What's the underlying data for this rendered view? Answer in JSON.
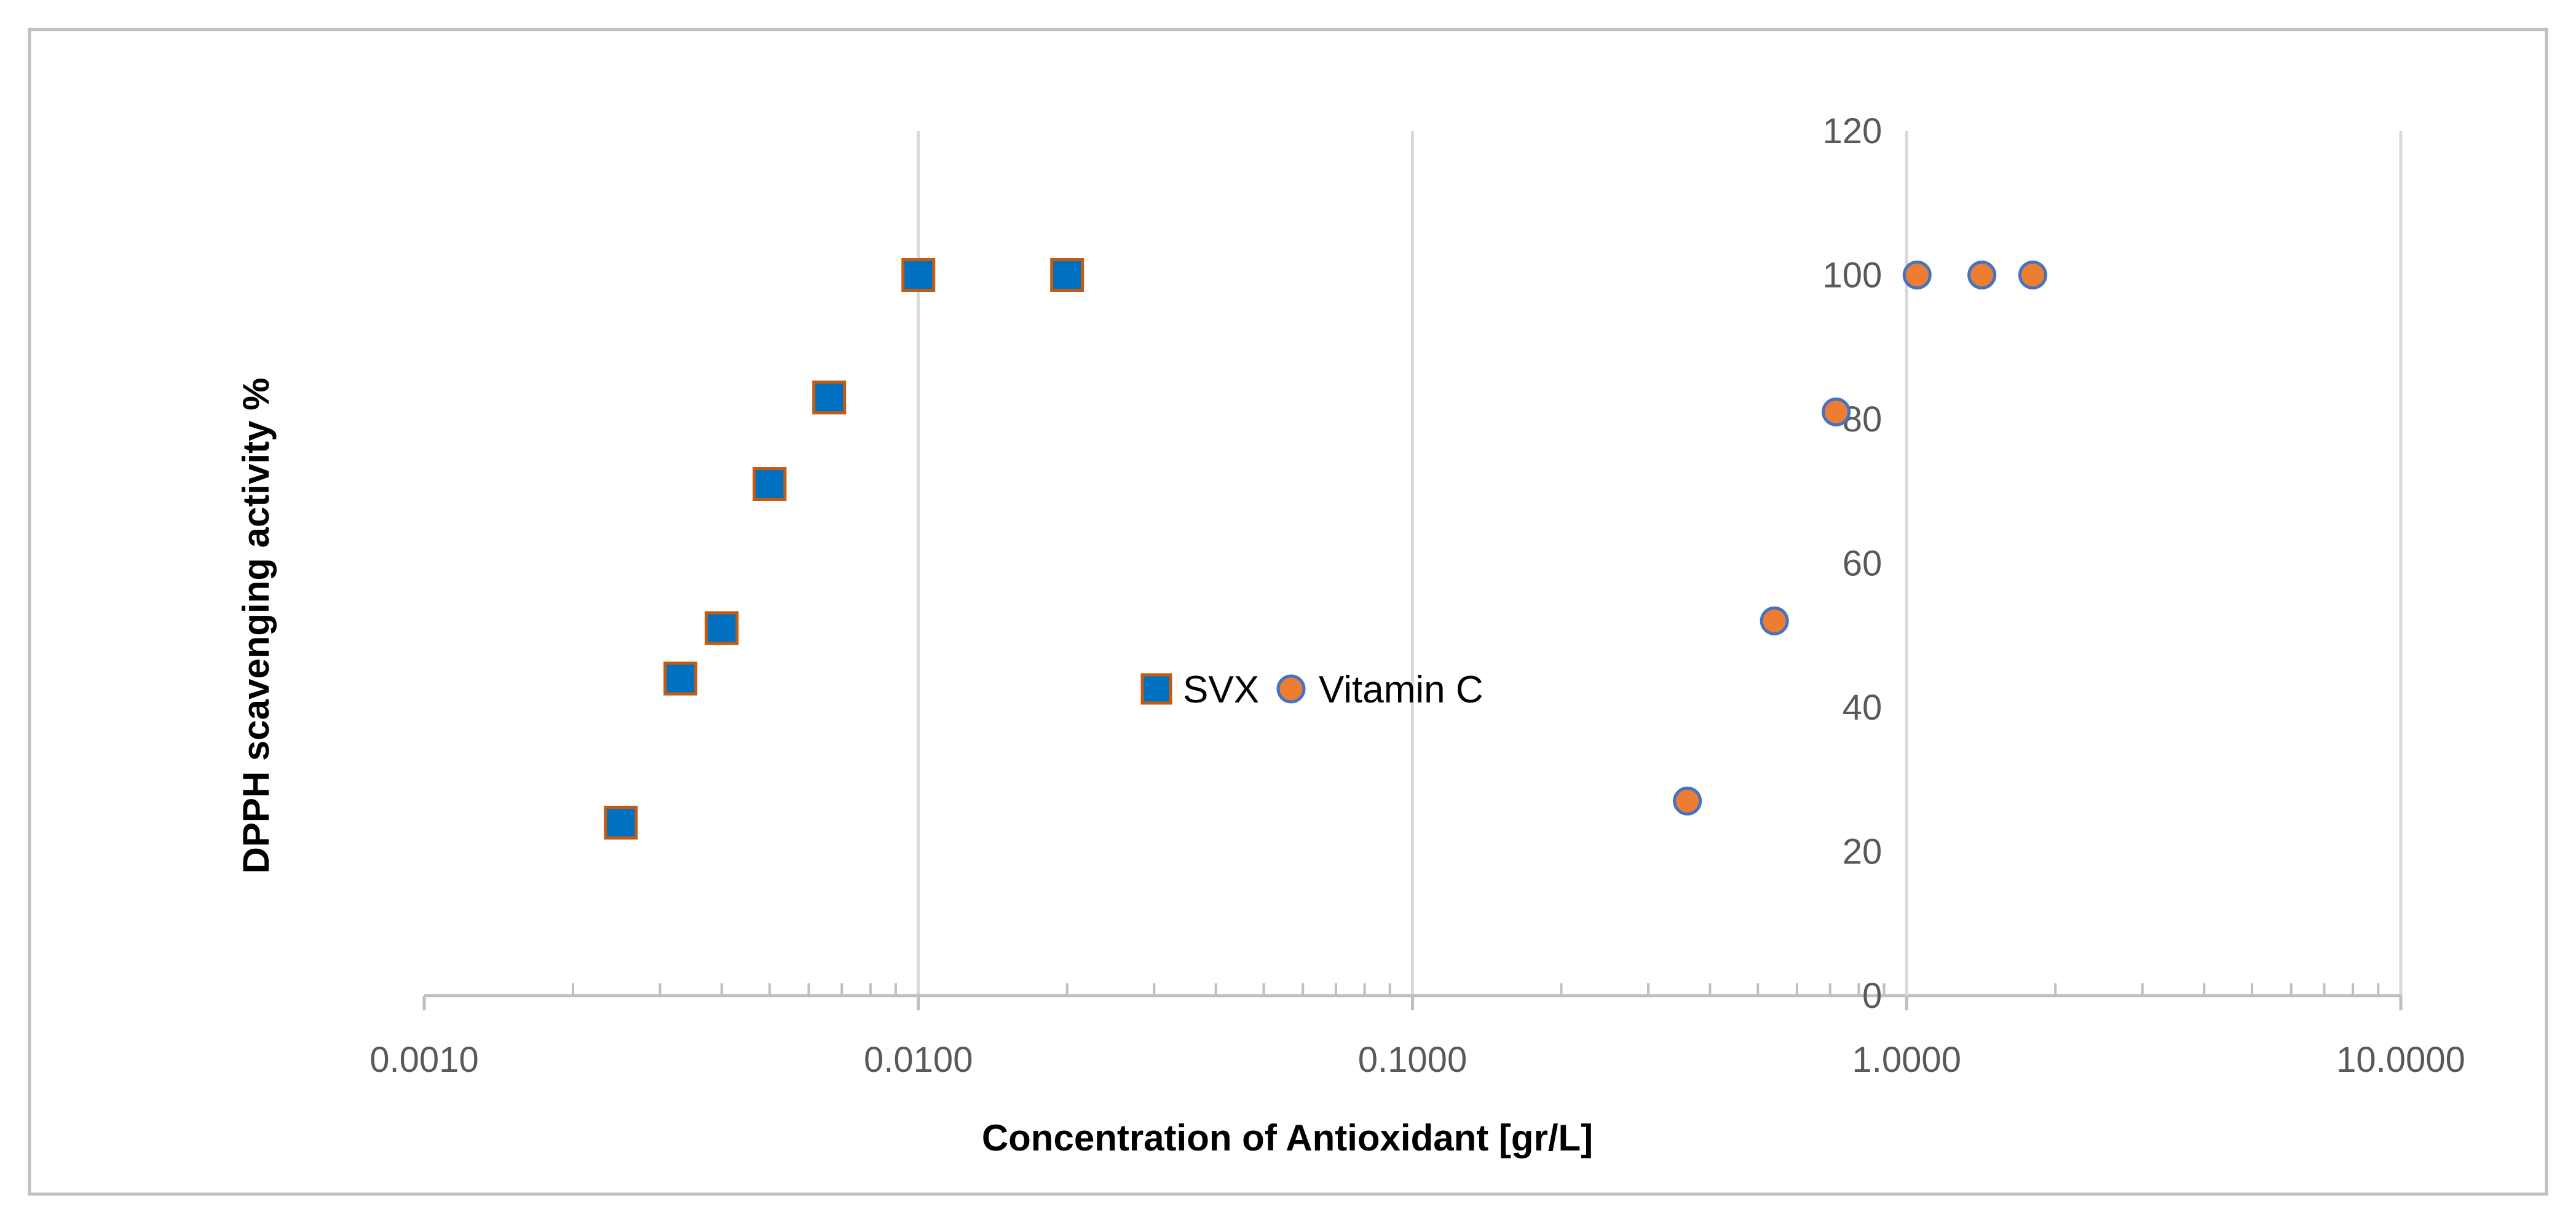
{
  "chart_data": {
    "type": "scatter",
    "title": "",
    "xlabel": "Concentration of Antioxidant [gr/L]",
    "ylabel": "DPPH scavenging activity %",
    "x_scale": "log",
    "xlim": [
      0.001,
      10
    ],
    "ylim": [
      0,
      120
    ],
    "x_ticks": [
      0.001,
      0.01,
      0.1,
      1,
      10
    ],
    "x_tick_labels": [
      "0.0010",
      "0.0100",
      "0.1000",
      "1.0000",
      "10.0000"
    ],
    "y_ticks": [
      0,
      20,
      40,
      60,
      80,
      100,
      120
    ],
    "y_tick_labels": [
      "0",
      "20",
      "40",
      "60",
      "80",
      "100",
      "120"
    ],
    "y_axis_crosses_x_at": 1,
    "grid": "vertical major gridlines",
    "legend_position": "center",
    "series": [
      {
        "name": "SVX",
        "marker": "square",
        "color": "#0070C0",
        "edge_color": "#C55A11",
        "points": [
          {
            "x": 0.0025,
            "y": 24
          },
          {
            "x": 0.0033,
            "y": 44
          },
          {
            "x": 0.004,
            "y": 51
          },
          {
            "x": 0.005,
            "y": 71
          },
          {
            "x": 0.0066,
            "y": 83
          },
          {
            "x": 0.01,
            "y": 100
          },
          {
            "x": 0.02,
            "y": 100
          }
        ]
      },
      {
        "name": "Vitamin C",
        "marker": "circle",
        "color": "#ED7D31",
        "edge_color": "#4472C4",
        "points": [
          {
            "x": 0.36,
            "y": 27
          },
          {
            "x": 0.54,
            "y": 52
          },
          {
            "x": 0.72,
            "y": 81
          },
          {
            "x": 1.05,
            "y": 100
          },
          {
            "x": 1.42,
            "y": 100
          },
          {
            "x": 1.8,
            "y": 100
          }
        ]
      }
    ]
  }
}
